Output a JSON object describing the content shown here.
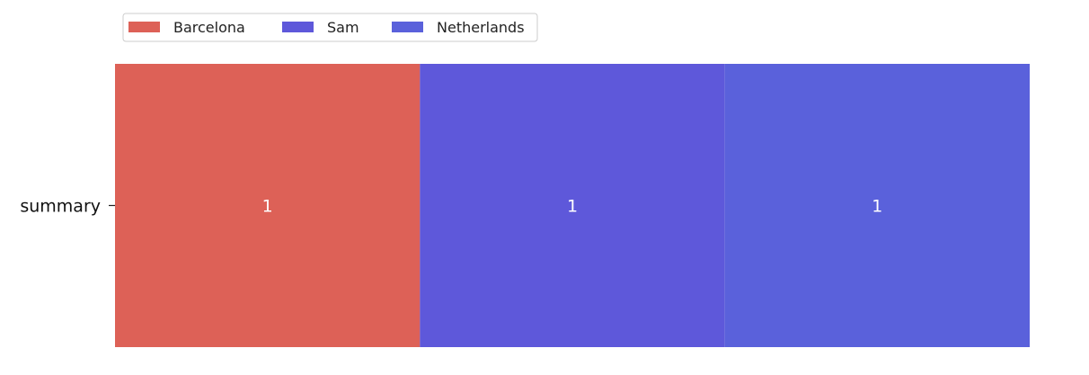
{
  "chart_data": {
    "type": "bar",
    "orientation": "horizontal",
    "stacked": true,
    "categories": [
      "summary"
    ],
    "series": [
      {
        "name": "Barcelona",
        "values": [
          1
        ],
        "color": "#dd6157"
      },
      {
        "name": "Sam",
        "values": [
          1
        ],
        "color": "#5e58da"
      },
      {
        "name": "Netherlands",
        "values": [
          1
        ],
        "color": "#5a61db"
      }
    ],
    "data_labels": true,
    "xlim": [
      0,
      3
    ],
    "x_axis_visible": false,
    "grid": false,
    "legend": {
      "placement": "top-left",
      "columns": 3
    }
  }
}
